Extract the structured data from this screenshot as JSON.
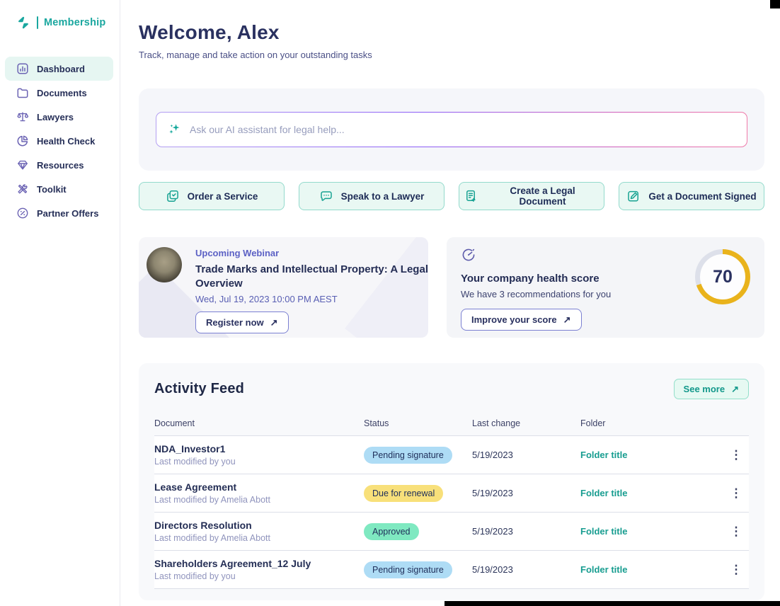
{
  "sidebar": {
    "logo_text": "Membership",
    "items": [
      {
        "id": "dashboard",
        "label": "Dashboard",
        "icon": "bar-chart",
        "active": true
      },
      {
        "id": "documents",
        "label": "Documents",
        "icon": "folder",
        "active": false
      },
      {
        "id": "lawyers",
        "label": "Lawyers",
        "icon": "scales",
        "active": false
      },
      {
        "id": "health-check",
        "label": "Health Check",
        "icon": "pie-chart",
        "active": false
      },
      {
        "id": "resources",
        "label": "Resources",
        "icon": "gem",
        "active": false
      },
      {
        "id": "toolkit",
        "label": "Toolkit",
        "icon": "tools",
        "active": false
      },
      {
        "id": "partner-offers",
        "label": "Partner Offers",
        "icon": "percent-badge",
        "active": false
      }
    ]
  },
  "header": {
    "title": "Welcome, Alex",
    "subtitle": "Track, manage and take action on your outstanding tasks"
  },
  "assistant": {
    "placeholder": "Ask our AI assistant for legal help...",
    "icon": "sparkle-icon"
  },
  "quick_actions": [
    {
      "id": "order-service",
      "label": "Order a Service",
      "icon": "order-service"
    },
    {
      "id": "speak-lawyer",
      "label": "Speak to a Lawyer",
      "icon": "speak-lawyer"
    },
    {
      "id": "create-legal-document",
      "label": "Create a Legal Document",
      "icon": "create-document"
    },
    {
      "id": "get-document-signed",
      "label": "Get a Document Signed",
      "icon": "sign-document"
    }
  ],
  "webinar": {
    "label": "Upcoming Webinar",
    "title": "Trade Marks and Intellectual Property: A Legal Overview",
    "datetime": "Wed, Jul 19, 2023 10:00 PM AEST",
    "cta": "Register now"
  },
  "health": {
    "title": "Your company health score",
    "subtitle": "We have 3 recommendations for you",
    "cta": "Improve your score",
    "score": "70",
    "score_percent": 70
  },
  "activity": {
    "title": "Activity Feed",
    "see_more": "See more",
    "columns": [
      "Document",
      "Status",
      "Last change",
      "Folder"
    ],
    "rows": [
      {
        "document": "NDA_Investor1",
        "modified": "Last modified by you",
        "status": "Pending signature",
        "status_type": "pending",
        "last_change": "5/19/2023",
        "folder": "Folder title"
      },
      {
        "document": "Lease Agreement",
        "modified": "Last modified by Amelia Abott",
        "status": "Due for renewal",
        "status_type": "due",
        "last_change": "5/19/2023",
        "folder": "Folder title"
      },
      {
        "document": "Directors Resolution",
        "modified": "Last modified by Amelia Abott",
        "status": "Approved",
        "status_type": "approved",
        "last_change": "5/19/2023",
        "folder": "Folder title"
      },
      {
        "document": "Shareholders Agreement_12 July",
        "modified": "Last modified by you",
        "status": "Pending signature",
        "status_type": "pending",
        "last_change": "5/19/2023",
        "folder": "Folder title"
      }
    ]
  },
  "icons": {
    "arrow_up_right": "↗",
    "kebab": "⋮"
  },
  "colors": {
    "accent_teal": "#17a292",
    "nav_icon_purple": "#6c64b4",
    "heading_navy": "#2a3160",
    "badge_pending": "#aedcf5",
    "badge_due": "#f8e07a",
    "badge_approved": "#7fe9c1",
    "score_ring_yellow": "#e9b31c",
    "score_ring_track": "#dde0ea"
  }
}
